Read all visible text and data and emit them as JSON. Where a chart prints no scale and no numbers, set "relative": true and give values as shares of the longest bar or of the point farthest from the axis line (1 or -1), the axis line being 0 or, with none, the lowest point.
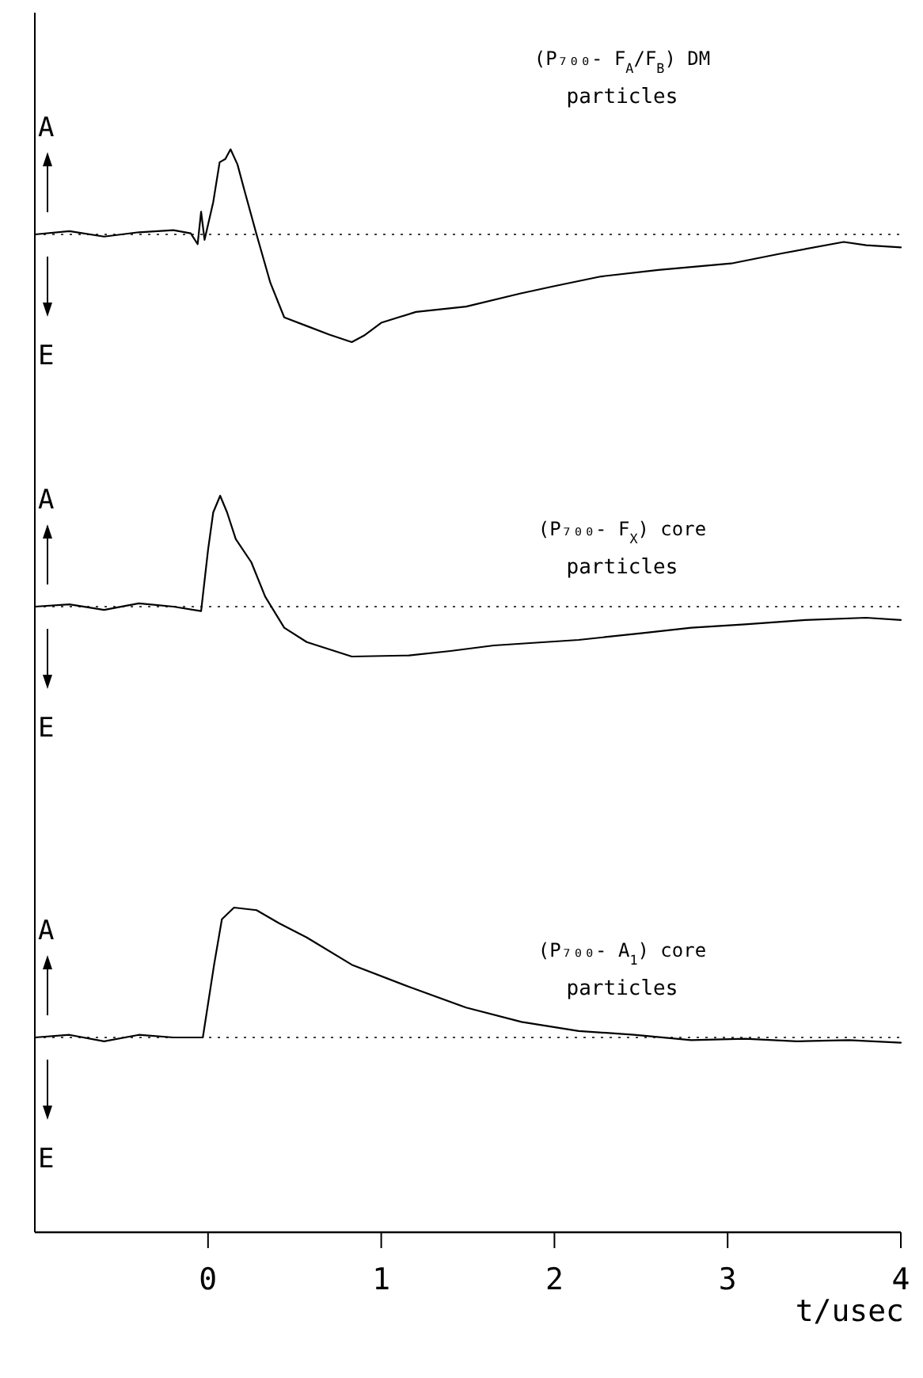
{
  "chart_data": [
    {
      "type": "line",
      "relative": true,
      "title": "(P₇₀₀- F$_{A}$/F$_{B}$) DM",
      "subtitle": "particles",
      "annotations": [
        "A",
        "E"
      ],
      "xlim": [
        -1,
        4
      ],
      "tick_labels": false,
      "ref_lines": [
        {
          "axis": "y",
          "value": 0,
          "line_style": "dotted"
        }
      ],
      "line_style": "solid",
      "marker": "none",
      "grid": false,
      "series": [
        {
          "color": "#000000",
          "x": [
            -1,
            -0.8,
            -0.6,
            -0.4,
            -0.2,
            -0.1,
            -0.06,
            -0.04,
            -0.02,
            0,
            0.03,
            0.067,
            0.1,
            0.13,
            0.17,
            0.21,
            0.28,
            0.36,
            0.44,
            0.57,
            0.7,
            0.83,
            0.9,
            1.0,
            1.2,
            1.49,
            1.8,
            2.0,
            2.27,
            2.6,
            3.02,
            3.3,
            3.67,
            3.8,
            4.0
          ],
          "values": [
            0,
            0.03,
            -0.02,
            0.02,
            0.04,
            0.01,
            -0.09,
            0.21,
            -0.05,
            0.09,
            0.3,
            0.67,
            0.7,
            0.79,
            0.65,
            0.41,
            0,
            -0.45,
            -0.77,
            -0.85,
            -0.93,
            -1,
            -0.94,
            -0.82,
            -0.72,
            -0.67,
            -0.55,
            -0.48,
            -0.39,
            -0.33,
            -0.27,
            -0.18,
            -0.07,
            -0.1,
            -0.12
          ]
        }
      ]
    },
    {
      "type": "line",
      "relative": true,
      "title": "(P₇₀₀- F$_{X}$) core",
      "subtitle": "particles",
      "annotations": [
        "A",
        "E"
      ],
      "xlim": [
        -1,
        4
      ],
      "tick_labels": false,
      "ref_lines": [
        {
          "axis": "y",
          "value": 0,
          "line_style": "dotted"
        }
      ],
      "line_style": "solid",
      "marker": "none",
      "grid": false,
      "series": [
        {
          "color": "#000000",
          "x": [
            -1,
            -0.8,
            -0.6,
            -0.4,
            -0.2,
            -0.04,
            0,
            0.03,
            0.07,
            0.11,
            0.16,
            0.25,
            0.33,
            0.44,
            0.57,
            0.83,
            1.16,
            1.4,
            1.65,
            2.14,
            2.5,
            2.79,
            3.1,
            3.45,
            3.8,
            4.0
          ],
          "values": [
            0,
            0.02,
            -0.03,
            0.03,
            0,
            -0.04,
            0.51,
            0.85,
            1,
            0.85,
            0.61,
            0.4,
            0.09,
            -0.19,
            -0.32,
            -0.45,
            -0.44,
            -0.4,
            -0.35,
            -0.3,
            -0.24,
            -0.19,
            -0.16,
            -0.12,
            -0.1,
            -0.12
          ]
        }
      ]
    },
    {
      "type": "line",
      "relative": true,
      "title": "(P₇₀₀- A$_{1}$) core",
      "subtitle": "particles",
      "annotations": [
        "A",
        "E"
      ],
      "xlim": [
        -1,
        4
      ],
      "xticks": [
        0,
        1,
        2,
        3,
        4
      ],
      "xlabel": "t/usec",
      "tick_labels": "x",
      "ref_lines": [
        {
          "axis": "y",
          "value": 0,
          "line_style": "dotted"
        }
      ],
      "line_style": "solid",
      "marker": "none",
      "grid": false,
      "series": [
        {
          "color": "#000000",
          "x": [
            -1,
            -0.8,
            -0.6,
            -0.4,
            -0.2,
            -0.03,
            0.035,
            0.08,
            0.15,
            0.28,
            0.41,
            0.57,
            0.83,
            1.16,
            1.49,
            1.81,
            2.14,
            2.46,
            2.79,
            3.1,
            3.4,
            3.7,
            4.0
          ],
          "values": [
            0,
            0.02,
            -0.03,
            0.02,
            0,
            0,
            0.56,
            0.91,
            1,
            0.98,
            0.88,
            0.77,
            0.56,
            0.39,
            0.23,
            0.12,
            0.05,
            0.02,
            -0.02,
            -0.01,
            -0.03,
            -0.02,
            -0.04
          ]
        }
      ]
    }
  ]
}
